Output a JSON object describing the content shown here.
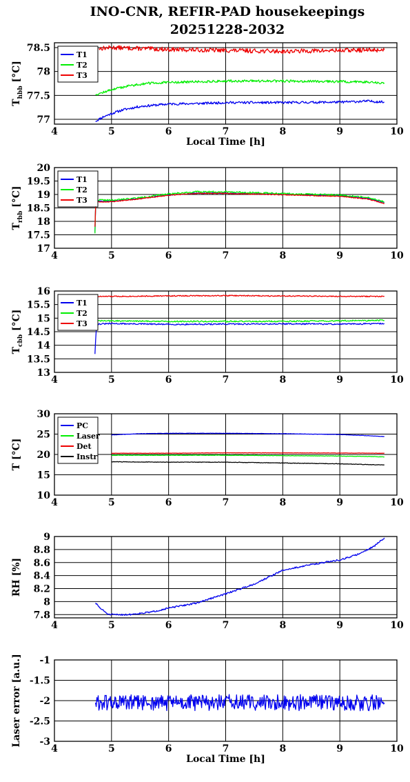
{
  "title": {
    "line1": "INO-CNR, REFIR-PAD housekeepings",
    "line2": "20251228-2032"
  },
  "colors": {
    "blue": "#0000ee",
    "green": "#00ee00",
    "red": "#ee0000",
    "black": "#000000",
    "grid": "#000000"
  },
  "chart_data": [
    {
      "id": "hbb",
      "type": "line",
      "ylabel": {
        "main": "T",
        "sub": "hbb",
        "unit": " [°C]"
      },
      "xlabel": "Local Time [h]",
      "xlim": [
        4,
        10
      ],
      "ylim": [
        76.9,
        78.6
      ],
      "xticks": [
        "4",
        "5",
        "6",
        "7",
        "8",
        "9",
        "10"
      ],
      "yticks": [
        {
          "v": 77,
          "t": "77"
        },
        {
          "v": 77.5,
          "t": "77.5"
        },
        {
          "v": 78,
          "t": "78"
        },
        {
          "v": 78.5,
          "t": "78.5"
        }
      ],
      "grid": true,
      "legend": "top-left",
      "series": [
        {
          "name": "T1",
          "color": "blue",
          "noise": 0.025,
          "seed": 11,
          "pts": [
            [
              4.72,
              76.96
            ],
            [
              4.85,
              77.05
            ],
            [
              5.0,
              77.12
            ],
            [
              5.2,
              77.2
            ],
            [
              5.5,
              77.27
            ],
            [
              6.0,
              77.32
            ],
            [
              6.5,
              77.33
            ],
            [
              7.0,
              77.35
            ],
            [
              8.0,
              77.35
            ],
            [
              9.0,
              77.36
            ],
            [
              9.5,
              77.38
            ],
            [
              9.78,
              77.36
            ]
          ]
        },
        {
          "name": "T2",
          "color": "green",
          "noise": 0.025,
          "seed": 12,
          "pts": [
            [
              4.72,
              77.52
            ],
            [
              4.85,
              77.56
            ],
            [
              5.0,
              77.62
            ],
            [
              5.3,
              77.7
            ],
            [
              5.6,
              77.75
            ],
            [
              6.0,
              77.77
            ],
            [
              7.0,
              77.8
            ],
            [
              8.0,
              77.8
            ],
            [
              9.0,
              77.79
            ],
            [
              9.5,
              77.78
            ],
            [
              9.78,
              77.76
            ]
          ]
        },
        {
          "name": "T3",
          "color": "red",
          "noise": 0.045,
          "seed": 13,
          "pts": [
            [
              4.78,
              78.48
            ],
            [
              5.0,
              78.5
            ],
            [
              6.0,
              78.46
            ],
            [
              7.0,
              78.44
            ],
            [
              8.0,
              78.42
            ],
            [
              9.0,
              78.44
            ],
            [
              9.78,
              78.45
            ]
          ]
        }
      ]
    },
    {
      "id": "rbb",
      "type": "line",
      "ylabel": {
        "main": "T",
        "sub": "rbb",
        "unit": " [°C]"
      },
      "xlabel": "",
      "xlim": [
        4,
        10
      ],
      "ylim": [
        17,
        20
      ],
      "xticks": [
        "4",
        "5",
        "6",
        "7",
        "8",
        "9",
        "10"
      ],
      "yticks": [
        {
          "v": 17,
          "t": "17"
        },
        {
          "v": 17.5,
          "t": "17.5"
        },
        {
          "v": 18,
          "t": "18"
        },
        {
          "v": 18.5,
          "t": "18.5"
        },
        {
          "v": 19,
          "t": "19"
        },
        {
          "v": 19.5,
          "t": "19.5"
        },
        {
          "v": 20,
          "t": "20"
        }
      ],
      "grid": true,
      "legend": "top-left",
      "series": [
        {
          "name": "T1",
          "color": "blue",
          "noise": 0.015,
          "seed": 21,
          "pts": [
            [
              4.71,
              17.6
            ],
            [
              4.72,
              18.6
            ],
            [
              4.74,
              18.75
            ],
            [
              5.0,
              18.75
            ],
            [
              5.5,
              18.85
            ],
            [
              6.0,
              18.98
            ],
            [
              6.5,
              19.05
            ],
            [
              7.0,
              19.05
            ],
            [
              8.0,
              19.0
            ],
            [
              9.0,
              18.95
            ],
            [
              9.5,
              18.85
            ],
            [
              9.78,
              18.7
            ]
          ]
        },
        {
          "name": "T2",
          "color": "green",
          "noise": 0.03,
          "seed": 22,
          "pts": [
            [
              4.71,
              17.55
            ],
            [
              4.72,
              18.65
            ],
            [
              4.74,
              18.8
            ],
            [
              5.0,
              18.78
            ],
            [
              5.5,
              18.88
            ],
            [
              6.0,
              19.02
            ],
            [
              6.5,
              19.1
            ],
            [
              7.0,
              19.1
            ],
            [
              8.0,
              19.03
            ],
            [
              9.0,
              18.98
            ],
            [
              9.5,
              18.88
            ],
            [
              9.78,
              18.72
            ]
          ]
        },
        {
          "name": "T3",
          "color": "red",
          "noise": 0.015,
          "seed": 23,
          "pts": [
            [
              4.71,
              17.8
            ],
            [
              4.72,
              18.55
            ],
            [
              4.74,
              18.72
            ],
            [
              5.0,
              18.73
            ],
            [
              5.5,
              18.84
            ],
            [
              6.0,
              18.97
            ],
            [
              6.5,
              19.04
            ],
            [
              7.0,
              19.04
            ],
            [
              8.0,
              18.99
            ],
            [
              9.0,
              18.93
            ],
            [
              9.5,
              18.83
            ],
            [
              9.78,
              18.66
            ]
          ]
        }
      ]
    },
    {
      "id": "cbb",
      "type": "line",
      "ylabel": {
        "main": "T",
        "sub": "cbb",
        "unit": " [°C]"
      },
      "xlabel": "",
      "xlim": [
        4,
        10
      ],
      "ylim": [
        13,
        16
      ],
      "xticks": [
        "4",
        "5",
        "6",
        "7",
        "8",
        "9",
        "10"
      ],
      "yticks": [
        {
          "v": 13,
          "t": "13"
        },
        {
          "v": 13.5,
          "t": "13.5"
        },
        {
          "v": 14,
          "t": "14"
        },
        {
          "v": 14.5,
          "t": "14.5"
        },
        {
          "v": 15,
          "t": "15"
        },
        {
          "v": 15.5,
          "t": "15.5"
        },
        {
          "v": 16,
          "t": "16"
        }
      ],
      "grid": true,
      "legend": "top-left",
      "series": [
        {
          "name": "T1",
          "color": "blue",
          "noise": 0.025,
          "seed": 31,
          "pts": [
            [
              4.71,
              13.68
            ],
            [
              4.73,
              14.6
            ],
            [
              4.76,
              14.78
            ],
            [
              5.0,
              14.8
            ],
            [
              6.0,
              14.77
            ],
            [
              7.0,
              14.78
            ],
            [
              8.0,
              14.79
            ],
            [
              9.0,
              14.78
            ],
            [
              9.78,
              14.8
            ]
          ]
        },
        {
          "name": "T2",
          "color": "green",
          "noise": 0.025,
          "seed": 32,
          "pts": [
            [
              4.73,
              14.9
            ],
            [
              5.0,
              14.9
            ],
            [
              6.0,
              14.88
            ],
            [
              7.0,
              14.88
            ],
            [
              8.0,
              14.88
            ],
            [
              9.0,
              14.9
            ],
            [
              9.78,
              14.92
            ]
          ]
        },
        {
          "name": "T3",
          "color": "red",
          "noise": 0.02,
          "seed": 33,
          "pts": [
            [
              4.76,
              15.8
            ],
            [
              5.0,
              15.8
            ],
            [
              6.0,
              15.82
            ],
            [
              7.0,
              15.83
            ],
            [
              8.0,
              15.82
            ],
            [
              9.0,
              15.8
            ],
            [
              9.78,
              15.8
            ]
          ]
        }
      ]
    },
    {
      "id": "temps",
      "type": "line",
      "ylabel": {
        "main": "T",
        "sub": "",
        "unit": " [°C]"
      },
      "xlabel": "",
      "xlim": [
        4,
        10
      ],
      "ylim": [
        10,
        30
      ],
      "xticks": [
        "4",
        "5",
        "6",
        "7",
        "8",
        "9",
        "10"
      ],
      "yticks": [
        {
          "v": 10,
          "t": "10"
        },
        {
          "v": 15,
          "t": "15"
        },
        {
          "v": 20,
          "t": "20"
        },
        {
          "v": 25,
          "t": "25"
        },
        {
          "v": 30,
          "t": "30"
        }
      ],
      "grid": true,
      "legend": "top-left",
      "series": [
        {
          "name": "PC",
          "color": "blue",
          "noise": 0.04,
          "seed": 41,
          "pts": [
            [
              5.0,
              24.8
            ],
            [
              5.5,
              25.1
            ],
            [
              6.0,
              25.2
            ],
            [
              7.0,
              25.2
            ],
            [
              8.0,
              25.1
            ],
            [
              9.0,
              24.9
            ],
            [
              9.5,
              24.6
            ],
            [
              9.78,
              24.4
            ]
          ]
        },
        {
          "name": "Laser",
          "color": "green",
          "noise": 0.05,
          "seed": 42,
          "pts": [
            [
              5.0,
              19.8
            ],
            [
              6.0,
              19.8
            ],
            [
              7.0,
              19.8
            ],
            [
              8.0,
              19.7
            ],
            [
              9.0,
              19.6
            ],
            [
              9.5,
              19.5
            ],
            [
              9.78,
              19.4
            ]
          ]
        },
        {
          "name": "Det",
          "color": "red",
          "noise": 0.04,
          "seed": 43,
          "pts": [
            [
              5.0,
              20.3
            ],
            [
              6.0,
              20.3
            ],
            [
              7.0,
              20.4
            ],
            [
              8.0,
              20.4
            ],
            [
              9.0,
              20.35
            ],
            [
              9.78,
              20.3
            ]
          ]
        },
        {
          "name": "Instr",
          "color": "black",
          "noise": 0.06,
          "seed": 44,
          "pts": [
            [
              5.0,
              18.2
            ],
            [
              6.0,
              18.1
            ],
            [
              7.0,
              18.1
            ],
            [
              8.0,
              17.9
            ],
            [
              9.0,
              17.7
            ],
            [
              9.5,
              17.5
            ],
            [
              9.78,
              17.4
            ]
          ]
        }
      ]
    },
    {
      "id": "rh",
      "type": "line",
      "ylabel": {
        "main": "RH [%]",
        "sub": "",
        "unit": ""
      },
      "xlabel": "",
      "xlim": [
        4,
        10
      ],
      "ylim": [
        7.75,
        9
      ],
      "xticks": [
        "4",
        "5",
        "6",
        "7",
        "8",
        "9",
        "10"
      ],
      "yticks": [
        {
          "v": 7.8,
          "t": "7.8"
        },
        {
          "v": 8,
          "t": "8"
        },
        {
          "v": 8.2,
          "t": "8.2"
        },
        {
          "v": 8.4,
          "t": "8.4"
        },
        {
          "v": 8.6,
          "t": "8.6"
        },
        {
          "v": 8.8,
          "t": "8.8"
        },
        {
          "v": 9,
          "t": "9"
        }
      ],
      "grid": true,
      "legend": "none",
      "series": [
        {
          "name": "",
          "color": "blue",
          "noise": 0.012,
          "seed": 51,
          "pts": [
            [
              4.72,
              7.98
            ],
            [
              4.8,
              7.9
            ],
            [
              4.95,
              7.8
            ],
            [
              5.3,
              7.8
            ],
            [
              5.7,
              7.84
            ],
            [
              6.0,
              7.9
            ],
            [
              6.5,
              7.98
            ],
            [
              7.0,
              8.12
            ],
            [
              7.5,
              8.27
            ],
            [
              8.0,
              8.48
            ],
            [
              8.5,
              8.57
            ],
            [
              9.0,
              8.64
            ],
            [
              9.3,
              8.72
            ],
            [
              9.6,
              8.85
            ],
            [
              9.78,
              8.98
            ]
          ]
        }
      ]
    },
    {
      "id": "laser",
      "type": "line",
      "ylabel": {
        "main": "Laser error [a.u.]",
        "sub": "",
        "unit": ""
      },
      "xlabel": "Local Time [h]",
      "xlim": [
        4,
        10
      ],
      "ylim": [
        -3,
        -1
      ],
      "xticks": [
        "4",
        "5",
        "6",
        "7",
        "8",
        "9",
        "10"
      ],
      "yticks": [
        {
          "v": -3,
          "t": "-3"
        },
        {
          "v": -2.5,
          "t": "-2.5"
        },
        {
          "v": -2,
          "t": "-2"
        },
        {
          "v": -1.5,
          "t": "-1.5"
        },
        {
          "v": -1,
          "t": "-1"
        }
      ],
      "grid": true,
      "legend": "none",
      "series": [
        {
          "name": "",
          "color": "blue",
          "noise": 0.2,
          "seed": 61,
          "pts": [
            [
              4.72,
              -2.05
            ],
            [
              5.5,
              -2.05
            ],
            [
              6.5,
              -2.05
            ],
            [
              7.5,
              -2.05
            ],
            [
              8.0,
              -2.05
            ],
            [
              8.5,
              -2.05
            ],
            [
              9.0,
              -2.05
            ],
            [
              9.78,
              -2.05
            ]
          ]
        }
      ]
    }
  ]
}
